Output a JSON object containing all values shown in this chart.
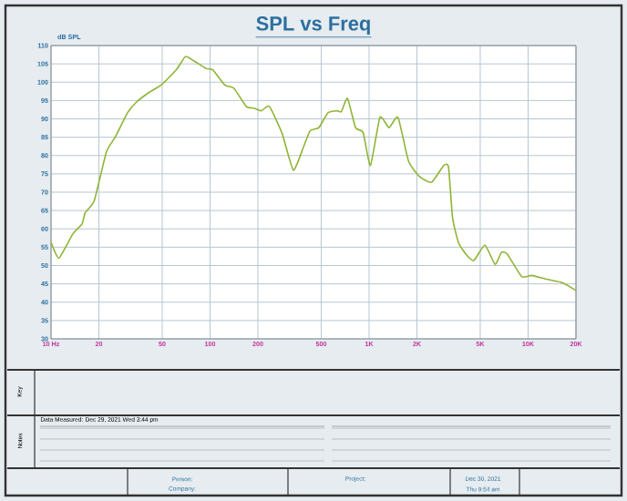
{
  "chart_data": {
    "type": "line",
    "title": "SPL vs Freq",
    "ylabel": "dB SPL",
    "x": [
      10,
      11.2,
      13.7,
      15.7,
      16.4,
      18.7,
      22.3,
      25.4,
      30.3,
      34.5,
      41.3,
      49.2,
      61.4,
      70,
      78.4,
      95,
      104,
      124,
      141,
      168.7,
      189,
      210,
      236,
      284,
      334,
      389,
      426,
      483,
      552,
      630,
      670,
      732,
      822,
      917,
      1020,
      1170,
      1335,
      1520,
      1770,
      2070,
      2470,
      2950,
      3160,
      3350,
      3660,
      4120,
      4570,
      5350,
      6200,
      6800,
      7400,
      9100,
      10500,
      13200,
      16500,
      20000
    ],
    "series": [
      {
        "color": "#8fb436",
        "values": [
          56.4,
          52,
          58.6,
          61.4,
          64.4,
          67.7,
          81,
          85.1,
          91.7,
          94.6,
          97.2,
          99.2,
          103.4,
          107,
          105.9,
          103.7,
          103.4,
          99.2,
          98.4,
          93.4,
          92.9,
          92.2,
          93.4,
          86,
          76,
          82.6,
          86.8,
          87.6,
          91.7,
          92.2,
          92,
          95.6,
          87.6,
          86.3,
          77.3,
          90.4,
          87.6,
          90.4,
          78.5,
          74.3,
          72.7,
          77.3,
          76.8,
          63,
          56.1,
          52.8,
          51.4,
          55.6,
          50.3,
          53.6,
          53.1,
          47,
          47.3,
          46.2,
          45.3,
          43.2
        ]
      }
    ],
    "log": "x",
    "xlim": [
      10,
      20000
    ],
    "ylim": [
      30,
      110
    ],
    "xticks": [
      {
        "value": 10,
        "label": "10 Hz"
      },
      20,
      50,
      100,
      200,
      500,
      {
        "value": 1000,
        "label": "1K"
      },
      {
        "value": 2000,
        "label": "2K"
      },
      {
        "value": 5000,
        "label": "5K"
      },
      {
        "value": 10000,
        "label": "10K"
      },
      {
        "value": 20000,
        "label": "20K"
      }
    ],
    "yticks": [
      30,
      35,
      40,
      45,
      50,
      55,
      60,
      65,
      70,
      75,
      80,
      85,
      90,
      95,
      100,
      105,
      110
    ],
    "grid": true,
    "marker": "none",
    "line_style": "solid",
    "annotations": [
      "Key",
      "Notes",
      "Data Measured: Dec 29, 2021  Wed 3:44 pm",
      "Person:",
      "Company:",
      "Project:",
      "Dec 30, 2021",
      "Thu 9:54 am"
    ]
  }
}
